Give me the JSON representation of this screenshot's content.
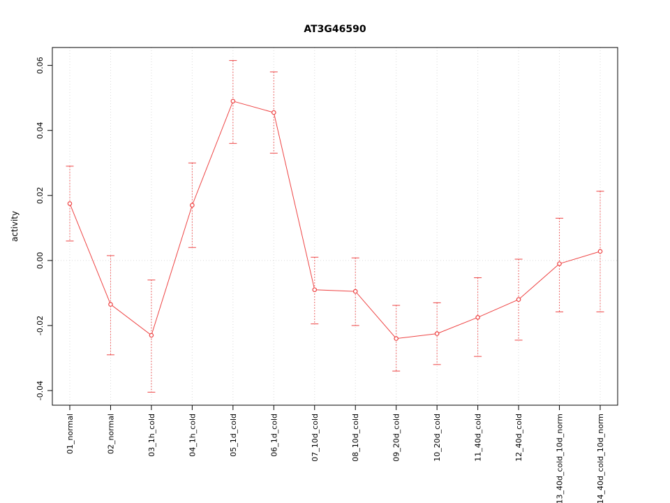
{
  "chart_data": {
    "type": "line",
    "title": "AT3G46590",
    "ylabel": "activity",
    "xlabel": "",
    "categories": [
      "01_normal",
      "02_normal",
      "03_1h_cold",
      "04_1h_cold",
      "05_1d_cold",
      "06_1d_cold",
      "07_10d_cold",
      "08_10d_cold",
      "09_20d_cold",
      "10_20d_cold",
      "11_40d_cold",
      "12_40d_cold",
      "13_40d_cold_10d_norm",
      "14_40d_cold_10d_norm"
    ],
    "series": [
      {
        "name": "activity",
        "values": [
          0.0175,
          -0.0135,
          -0.023,
          0.017,
          0.049,
          0.0455,
          -0.009,
          -0.0095,
          -0.024,
          -0.0225,
          -0.0175,
          -0.012,
          -0.001,
          0.0028
        ],
        "err_low": [
          0.006,
          -0.029,
          -0.0405,
          0.004,
          0.036,
          0.033,
          -0.0195,
          -0.02,
          -0.034,
          -0.032,
          -0.0295,
          -0.0245,
          -0.0158,
          -0.0158
        ],
        "err_high": [
          0.029,
          0.0015,
          -0.006,
          0.03,
          0.0615,
          0.058,
          0.001,
          0.0008,
          -0.0138,
          -0.013,
          -0.0053,
          0.0004,
          0.013,
          0.0213
        ]
      }
    ],
    "ylim": [
      -0.0445,
      0.0655
    ],
    "ytick_values": [
      -0.04,
      -0.02,
      0,
      0.02,
      0.04,
      0.06
    ],
    "ytick_labels": [
      "-0.04",
      "-0.02",
      "0.00",
      "0.02",
      "0.04",
      "0.06"
    ],
    "grid": true,
    "zero_line": true,
    "legend_position": "none",
    "point_style": "open-circle",
    "error_bars": true,
    "colors": {
      "line": "#ee4343",
      "grid": "#d9d9d9",
      "axis": "#000000",
      "background": "#ffffff"
    }
  }
}
